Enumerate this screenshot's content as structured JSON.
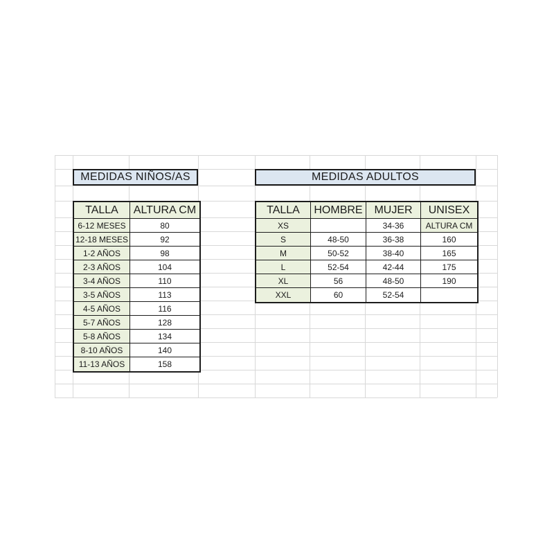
{
  "colors": {
    "title_fill": "#dce6f1",
    "header_fill": "#ebf1de",
    "cell_fill": "#ffffff",
    "table_border": "#1c1c1c",
    "gridline": "#d8d8d8",
    "text": "#1b1b1b"
  },
  "kids_table": {
    "title": "MEDIDAS NIÑOS/AS",
    "columns": [
      "TALLA",
      "ALTURA CM"
    ],
    "rows": [
      [
        "6-12 MESES",
        "80"
      ],
      [
        "12-18 MESES",
        "92"
      ],
      [
        "1-2 AÑOS",
        "98"
      ],
      [
        "2-3 AÑOS",
        "104"
      ],
      [
        "3-4 AÑOS",
        "110"
      ],
      [
        "3-5 AÑOS",
        "113"
      ],
      [
        "4-5 AÑOS",
        "116"
      ],
      [
        "5-7 AÑOS",
        "128"
      ],
      [
        "5-8 AÑOS",
        "134"
      ],
      [
        "8-10 AÑOS",
        "140"
      ],
      [
        "11-13 AÑOS",
        "158"
      ]
    ]
  },
  "adults_table": {
    "title": "MEDIDAS ADULTOS",
    "columns": [
      "TALLA",
      "HOMBRE",
      "MUJER",
      "UNISEX"
    ],
    "green_extra_cell": {
      "row": 0,
      "col": 3
    },
    "rows": [
      [
        "XS",
        "",
        "34-36",
        "ALTURA CM"
      ],
      [
        "S",
        "48-50",
        "36-38",
        "160"
      ],
      [
        "M",
        "50-52",
        "38-40",
        "165"
      ],
      [
        "L",
        "52-54",
        "42-44",
        "175"
      ],
      [
        "XL",
        "56",
        "48-50",
        "190"
      ],
      [
        "XXL",
        "60",
        "52-54",
        ""
      ]
    ]
  }
}
